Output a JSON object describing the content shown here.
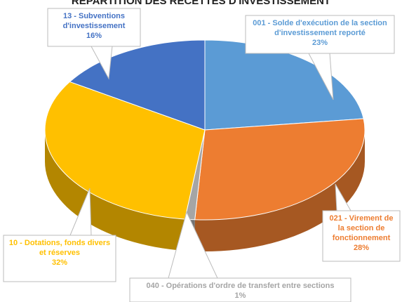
{
  "chart_data": {
    "type": "pie",
    "title": "RÉPARTITION DES RECETTES D'INVESTISSEMENT",
    "categories": [
      "001 - Solde d'exécution de la section d'investissement reporté",
      "021 - Virement de la section de fonctionnement",
      "040 - Opérations d'ordre de transfert entre sections",
      "10 - Dotations, fonds divers et réserves",
      "13 - Subventions d'investissement"
    ],
    "values": [
      23,
      28,
      1,
      32,
      16
    ],
    "value_labels": [
      "23%",
      "28%",
      "1%",
      "32%",
      "16%"
    ],
    "colors": [
      "#5b9bd5",
      "#ed7d31",
      "#a5a5a5",
      "#ffc000",
      "#4472c4"
    ]
  }
}
